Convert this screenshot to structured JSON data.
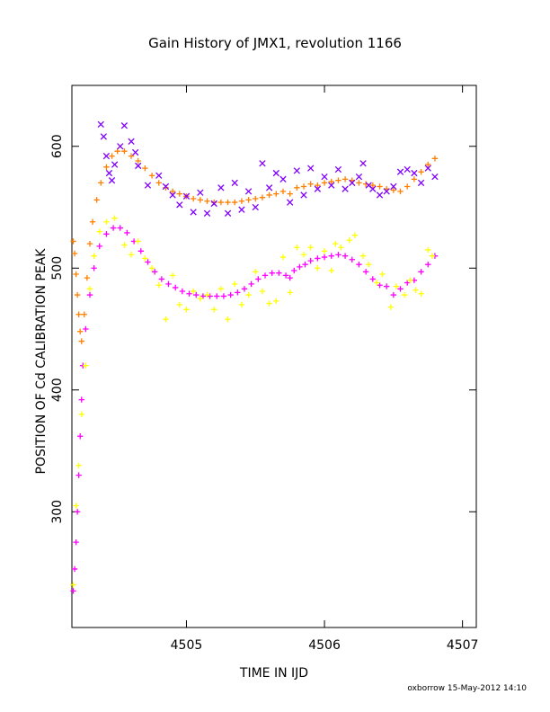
{
  "chart_data": {
    "type": "scatter",
    "title": "Gain History of JMX1, revolution 1166",
    "xlabel": "TIME IN IJD",
    "ylabel": "POSITION OF Cd CALIBRATION PEAK",
    "xlim": [
      4504.17,
      4507.1
    ],
    "ylim": [
      205,
      650
    ],
    "x_ticks": [
      {
        "value": 4505,
        "label": "4505"
      },
      {
        "value": 4506,
        "label": "4506"
      },
      {
        "value": 4507,
        "label": "4507"
      }
    ],
    "y_ticks": [
      {
        "value": 300,
        "label": "300"
      },
      {
        "value": 400,
        "label": "400"
      },
      {
        "value": 500,
        "label": "500"
      },
      {
        "value": 600,
        "label": "600"
      }
    ],
    "colors": {
      "orange": "#ff7f00",
      "purple": "#8000ff",
      "magenta": "#ff00ff",
      "yellow": "#ffff00"
    },
    "series": [
      {
        "marker": "plus",
        "color": "#ff7f00",
        "points": [
          [
            4504.18,
            522
          ],
          [
            4504.19,
            512
          ],
          [
            4504.2,
            495
          ],
          [
            4504.21,
            478
          ],
          [
            4504.22,
            462
          ],
          [
            4504.23,
            448
          ],
          [
            4504.24,
            440
          ],
          [
            4504.26,
            462
          ],
          [
            4504.28,
            492
          ],
          [
            4504.3,
            520
          ],
          [
            4504.32,
            538
          ],
          [
            4504.35,
            556
          ],
          [
            4504.38,
            570
          ],
          [
            4504.42,
            583
          ],
          [
            4504.46,
            592
          ],
          [
            4504.5,
            596
          ],
          [
            4504.55,
            596
          ],
          [
            4504.6,
            592
          ],
          [
            4504.65,
            588
          ],
          [
            4504.7,
            582
          ],
          [
            4504.75,
            576
          ],
          [
            4504.8,
            570
          ],
          [
            4504.85,
            566
          ],
          [
            4504.9,
            563
          ],
          [
            4504.95,
            561
          ],
          [
            4505.0,
            559
          ],
          [
            4505.05,
            557
          ],
          [
            4505.1,
            556
          ],
          [
            4505.15,
            555
          ],
          [
            4505.2,
            554
          ],
          [
            4505.25,
            554
          ],
          [
            4505.3,
            554
          ],
          [
            4505.35,
            554
          ],
          [
            4505.4,
            555
          ],
          [
            4505.45,
            556
          ],
          [
            4505.5,
            557
          ],
          [
            4505.55,
            558
          ],
          [
            4505.6,
            560
          ],
          [
            4505.65,
            561
          ],
          [
            4505.7,
            563
          ],
          [
            4505.75,
            561
          ],
          [
            4505.8,
            566
          ],
          [
            4505.85,
            567
          ],
          [
            4505.9,
            569
          ],
          [
            4505.95,
            568
          ],
          [
            4506.0,
            570
          ],
          [
            4506.05,
            571
          ],
          [
            4506.1,
            572
          ],
          [
            4506.15,
            573
          ],
          [
            4506.2,
            572
          ],
          [
            4506.25,
            570
          ],
          [
            4506.3,
            569
          ],
          [
            4506.35,
            568
          ],
          [
            4506.4,
            567
          ],
          [
            4506.45,
            565
          ],
          [
            4506.5,
            564
          ],
          [
            4506.55,
            563
          ],
          [
            4506.6,
            567
          ],
          [
            4506.65,
            573
          ],
          [
            4506.7,
            579
          ],
          [
            4506.75,
            585
          ],
          [
            4506.8,
            590
          ]
        ]
      },
      {
        "marker": "x",
        "color": "#8000ff",
        "points": [
          [
            4504.38,
            618
          ],
          [
            4504.4,
            608
          ],
          [
            4504.42,
            592
          ],
          [
            4504.44,
            578
          ],
          [
            4504.46,
            572
          ],
          [
            4504.48,
            585
          ],
          [
            4504.52,
            600
          ],
          [
            4504.55,
            617
          ],
          [
            4504.6,
            604
          ],
          [
            4504.63,
            595
          ],
          [
            4504.65,
            584
          ],
          [
            4504.72,
            568
          ],
          [
            4504.8,
            576
          ],
          [
            4504.85,
            567
          ],
          [
            4504.9,
            560
          ],
          [
            4504.95,
            552
          ],
          [
            4505.0,
            559
          ],
          [
            4505.05,
            546
          ],
          [
            4505.1,
            562
          ],
          [
            4505.15,
            545
          ],
          [
            4505.2,
            553
          ],
          [
            4505.25,
            566
          ],
          [
            4505.3,
            545
          ],
          [
            4505.35,
            570
          ],
          [
            4505.4,
            548
          ],
          [
            4505.45,
            563
          ],
          [
            4505.5,
            550
          ],
          [
            4505.55,
            586
          ],
          [
            4505.6,
            566
          ],
          [
            4505.65,
            578
          ],
          [
            4505.7,
            573
          ],
          [
            4505.75,
            554
          ],
          [
            4505.8,
            580
          ],
          [
            4505.85,
            560
          ],
          [
            4505.9,
            582
          ],
          [
            4505.95,
            565
          ],
          [
            4506.0,
            575
          ],
          [
            4506.05,
            568
          ],
          [
            4506.1,
            581
          ],
          [
            4506.15,
            565
          ],
          [
            4506.2,
            570
          ],
          [
            4506.25,
            575
          ],
          [
            4506.28,
            586
          ],
          [
            4506.32,
            568
          ],
          [
            4506.35,
            565
          ],
          [
            4506.4,
            560
          ],
          [
            4506.45,
            563
          ],
          [
            4506.5,
            567
          ],
          [
            4506.55,
            579
          ],
          [
            4506.6,
            581
          ],
          [
            4506.65,
            578
          ],
          [
            4506.7,
            570
          ],
          [
            4506.75,
            582
          ],
          [
            4506.8,
            575
          ]
        ]
      },
      {
        "marker": "plus",
        "color": "#ff00ff",
        "points": [
          [
            4504.18,
            235
          ],
          [
            4504.19,
            253
          ],
          [
            4504.2,
            275
          ],
          [
            4504.21,
            300
          ],
          [
            4504.22,
            330
          ],
          [
            4504.23,
            362
          ],
          [
            4504.24,
            392
          ],
          [
            4504.25,
            420
          ],
          [
            4504.27,
            450
          ],
          [
            4504.3,
            478
          ],
          [
            4504.33,
            500
          ],
          [
            4504.37,
            518
          ],
          [
            4504.42,
            528
          ],
          [
            4504.47,
            533
          ],
          [
            4504.52,
            533
          ],
          [
            4504.57,
            529
          ],
          [
            4504.62,
            522
          ],
          [
            4504.67,
            514
          ],
          [
            4504.72,
            505
          ],
          [
            4504.77,
            497
          ],
          [
            4504.82,
            491
          ],
          [
            4504.87,
            487
          ],
          [
            4504.92,
            484
          ],
          [
            4504.97,
            481
          ],
          [
            4505.02,
            479
          ],
          [
            4505.07,
            478
          ],
          [
            4505.12,
            477
          ],
          [
            4505.17,
            477
          ],
          [
            4505.22,
            477
          ],
          [
            4505.27,
            477
          ],
          [
            4505.32,
            478
          ],
          [
            4505.37,
            480
          ],
          [
            4505.42,
            483
          ],
          [
            4505.47,
            487
          ],
          [
            4505.52,
            491
          ],
          [
            4505.57,
            494
          ],
          [
            4505.62,
            496
          ],
          [
            4505.67,
            496
          ],
          [
            4505.72,
            494
          ],
          [
            4505.75,
            492
          ],
          [
            4505.78,
            498
          ],
          [
            4505.82,
            501
          ],
          [
            4505.86,
            503
          ],
          [
            4505.9,
            506
          ],
          [
            4505.95,
            508
          ],
          [
            4506.0,
            509
          ],
          [
            4506.05,
            510
          ],
          [
            4506.1,
            511
          ],
          [
            4506.15,
            510
          ],
          [
            4506.2,
            507
          ],
          [
            4506.25,
            503
          ],
          [
            4506.3,
            497
          ],
          [
            4506.35,
            491
          ],
          [
            4506.4,
            486
          ],
          [
            4506.45,
            485
          ],
          [
            4506.5,
            478
          ],
          [
            4506.55,
            483
          ],
          [
            4506.6,
            488
          ],
          [
            4506.65,
            490
          ],
          [
            4506.7,
            497
          ],
          [
            4506.75,
            503
          ],
          [
            4506.8,
            510
          ]
        ]
      },
      {
        "marker": "plus",
        "color": "#ffff00",
        "points": [
          [
            4504.18,
            240
          ],
          [
            4504.2,
            305
          ],
          [
            4504.22,
            338
          ],
          [
            4504.24,
            380
          ],
          [
            4504.27,
            420
          ],
          [
            4504.3,
            483
          ],
          [
            4504.33,
            510
          ],
          [
            4504.37,
            530
          ],
          [
            4504.42,
            538
          ],
          [
            4504.48,
            541
          ],
          [
            4504.55,
            519
          ],
          [
            4504.6,
            511
          ],
          [
            4504.65,
            522
          ],
          [
            4504.7,
            508
          ],
          [
            4504.75,
            500
          ],
          [
            4504.8,
            486
          ],
          [
            4504.85,
            458
          ],
          [
            4504.9,
            494
          ],
          [
            4504.95,
            470
          ],
          [
            4505.0,
            466
          ],
          [
            4505.05,
            481
          ],
          [
            4505.1,
            475
          ],
          [
            4505.15,
            478
          ],
          [
            4505.2,
            466
          ],
          [
            4505.25,
            483
          ],
          [
            4505.3,
            458
          ],
          [
            4505.35,
            487
          ],
          [
            4505.4,
            470
          ],
          [
            4505.45,
            478
          ],
          [
            4505.5,
            497
          ],
          [
            4505.55,
            481
          ],
          [
            4505.6,
            471
          ],
          [
            4505.65,
            473
          ],
          [
            4505.7,
            509
          ],
          [
            4505.75,
            480
          ],
          [
            4505.8,
            517
          ],
          [
            4505.85,
            511
          ],
          [
            4505.9,
            517
          ],
          [
            4505.95,
            500
          ],
          [
            4506.0,
            514
          ],
          [
            4506.05,
            498
          ],
          [
            4506.08,
            520
          ],
          [
            4506.12,
            517
          ],
          [
            4506.18,
            523
          ],
          [
            4506.22,
            527
          ],
          [
            4506.28,
            510
          ],
          [
            4506.32,
            503
          ],
          [
            4506.38,
            488
          ],
          [
            4506.42,
            495
          ],
          [
            4506.48,
            468
          ],
          [
            4506.52,
            485
          ],
          [
            4506.58,
            478
          ],
          [
            4506.62,
            490
          ],
          [
            4506.66,
            482
          ],
          [
            4506.7,
            479
          ],
          [
            4506.75,
            515
          ],
          [
            4506.78,
            510
          ]
        ]
      }
    ],
    "grid": false,
    "legend": "none"
  },
  "footer": {
    "credit": "oxborrow 15-May-2012 14:10"
  }
}
